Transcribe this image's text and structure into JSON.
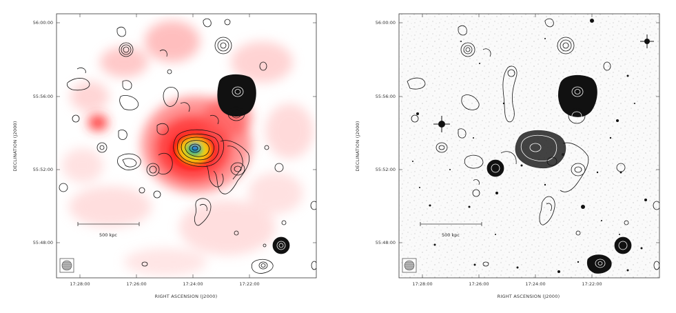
{
  "panels": [
    {
      "id": "left",
      "background": "xray-heatmap",
      "y_ticks": [
        "56:00:00",
        "55:56:00",
        "55:52:00",
        "55:48:00"
      ],
      "x_ticks": [
        "17:28:00",
        "17:26:00",
        "17:24:00",
        "17:22:00"
      ],
      "xlabel": "RIGHT ASCENSION (J2000)",
      "ylabel": "DECLINATION (J2000)",
      "scale_bar_label": "500 kpc",
      "beam_icon": "beam-ellipse-icon"
    },
    {
      "id": "right",
      "background": "optical-grayscale",
      "y_ticks": [
        "56:00:00",
        "55:56:00",
        "55:52:00",
        "55:48:00"
      ],
      "x_ticks": [
        "17:28:00",
        "17:26:00",
        "17:24:00",
        "17:22:00"
      ],
      "xlabel": "RIGHT ASCENSION (J2000)",
      "ylabel": "DECLINATION (J2000)",
      "scale_bar_label": "500 kpc",
      "beam_icon": "beam-ellipse-icon"
    }
  ],
  "colors": {
    "heat_low": "#ffd6d6",
    "heat_mid": "#ff2a2a",
    "heat_high": "#ffd400",
    "heat_peak_green": "#25c13a",
    "heat_peak_blue": "#1f3cff",
    "contour": "#111111"
  }
}
